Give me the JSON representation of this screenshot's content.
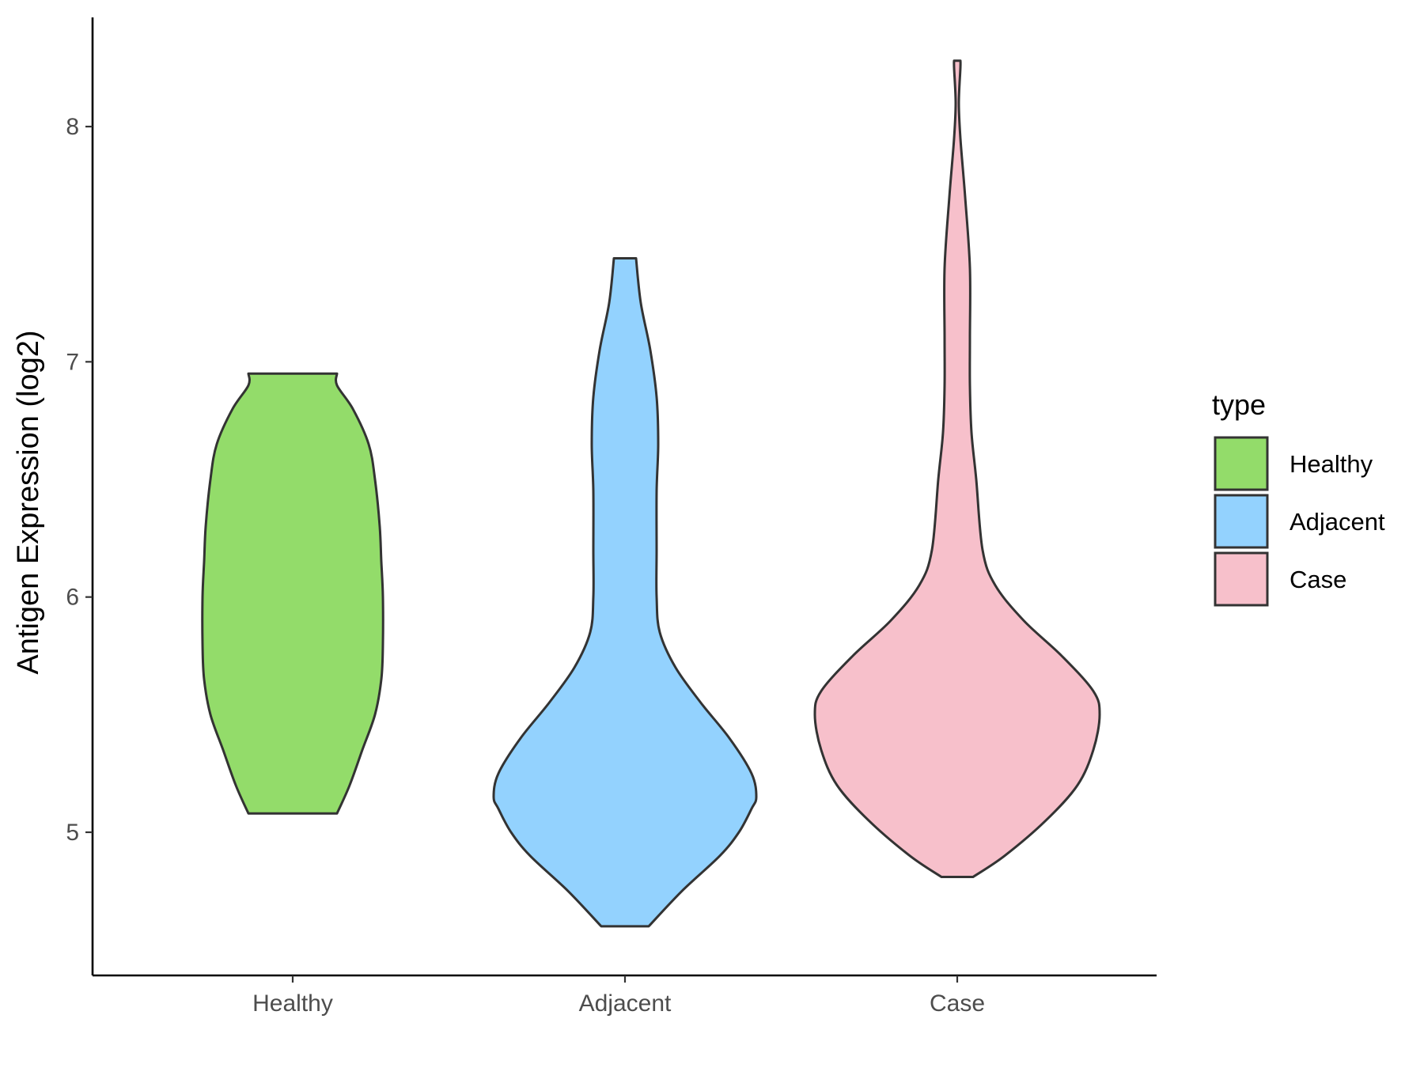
{
  "chart_data": {
    "type": "violin",
    "title": "",
    "xlabel": "",
    "ylabel": "Antigen Expression (log2)",
    "categories": [
      "Healthy",
      "Adjacent",
      "Case"
    ],
    "y_ticks": [
      5,
      6,
      7,
      8
    ],
    "ylim": [
      4.4,
      8.5
    ],
    "grid": false,
    "legend": {
      "title": "type",
      "placement": "right",
      "entries": [
        "Healthy",
        "Adjacent",
        "Case"
      ]
    },
    "series": [
      {
        "name": "Healthy",
        "color": "#93dc6a",
        "min": 5.08,
        "max": 6.95,
        "max_half_width": 0.58,
        "profile": [
          [
            5.08,
            0.28
          ],
          [
            5.2,
            0.36
          ],
          [
            5.35,
            0.44
          ],
          [
            5.5,
            0.52
          ],
          [
            5.65,
            0.56
          ],
          [
            5.8,
            0.57
          ],
          [
            6.0,
            0.57
          ],
          [
            6.15,
            0.56
          ],
          [
            6.3,
            0.55
          ],
          [
            6.5,
            0.52
          ],
          [
            6.65,
            0.48
          ],
          [
            6.8,
            0.38
          ],
          [
            6.9,
            0.28
          ],
          [
            6.95,
            0.28
          ]
        ]
      },
      {
        "name": "Adjacent",
        "color": "#93d2fe",
        "min": 4.6,
        "max": 7.44,
        "max_half_width": 0.83,
        "profile": [
          [
            4.6,
            0.15
          ],
          [
            4.75,
            0.36
          ],
          [
            4.9,
            0.6
          ],
          [
            5.0,
            0.72
          ],
          [
            5.1,
            0.8
          ],
          [
            5.15,
            0.83
          ],
          [
            5.25,
            0.8
          ],
          [
            5.4,
            0.66
          ],
          [
            5.55,
            0.48
          ],
          [
            5.7,
            0.32
          ],
          [
            5.85,
            0.22
          ],
          [
            6.0,
            0.2
          ],
          [
            6.2,
            0.2
          ],
          [
            6.45,
            0.2
          ],
          [
            6.65,
            0.21
          ],
          [
            6.85,
            0.2
          ],
          [
            7.05,
            0.16
          ],
          [
            7.25,
            0.1
          ],
          [
            7.44,
            0.07
          ]
        ]
      },
      {
        "name": "Case",
        "color": "#f7c0cb",
        "min": 4.81,
        "max": 8.28,
        "max_half_width": 0.9,
        "profile": [
          [
            4.81,
            0.1
          ],
          [
            4.9,
            0.3
          ],
          [
            5.05,
            0.56
          ],
          [
            5.2,
            0.76
          ],
          [
            5.35,
            0.86
          ],
          [
            5.5,
            0.9
          ],
          [
            5.6,
            0.86
          ],
          [
            5.75,
            0.66
          ],
          [
            5.9,
            0.42
          ],
          [
            6.05,
            0.24
          ],
          [
            6.2,
            0.16
          ],
          [
            6.5,
            0.12
          ],
          [
            6.7,
            0.09
          ],
          [
            6.9,
            0.08
          ],
          [
            7.1,
            0.08
          ],
          [
            7.4,
            0.08
          ],
          [
            7.7,
            0.05
          ],
          [
            7.95,
            0.02
          ],
          [
            8.1,
            0.01
          ],
          [
            8.25,
            0.02
          ],
          [
            8.28,
            0.02
          ]
        ]
      }
    ]
  }
}
